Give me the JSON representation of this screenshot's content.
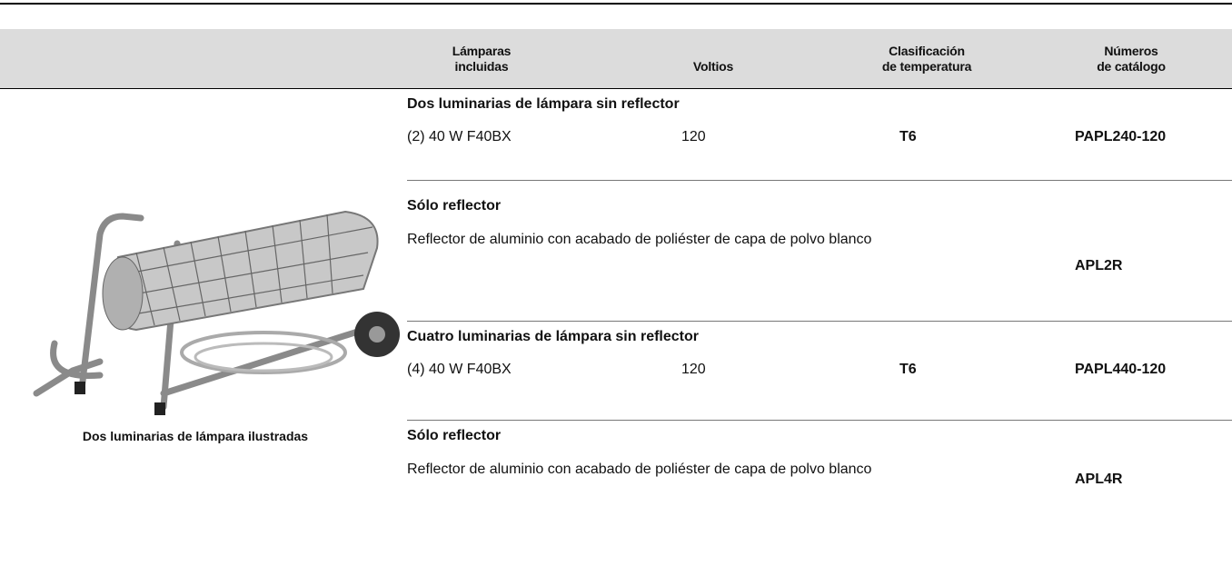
{
  "header": {
    "columns": [
      [
        "Lámparas",
        "incluidas"
      ],
      [
        "Voltios"
      ],
      [
        "Clasificación",
        "de temperatura"
      ],
      [
        "Números",
        "de catálogo"
      ]
    ]
  },
  "image": {
    "caption": "Dos luminarias de lámpara ilustradas"
  },
  "sections": [
    {
      "title": "Dos luminarias de lámpara sin reflector",
      "lamps": "(2) 40 W F40BX",
      "volts": "120",
      "temperature": "T6",
      "catalog": "PAPL240-120"
    },
    {
      "title": "Sólo reflector",
      "description": "Reflector de aluminio con acabado de poliéster de capa de polvo blanco",
      "catalog": "APL2R"
    },
    {
      "title": "Cuatro luminarias de lámpara sin reflector",
      "lamps": "(4) 40 W F40BX",
      "volts": "120",
      "temperature": "T6",
      "catalog": "PAPL440-120"
    },
    {
      "title": "Sólo reflector",
      "description": "Reflector de aluminio con acabado de poliéster de capa de polvo blanco",
      "catalog": "APL4R"
    }
  ]
}
